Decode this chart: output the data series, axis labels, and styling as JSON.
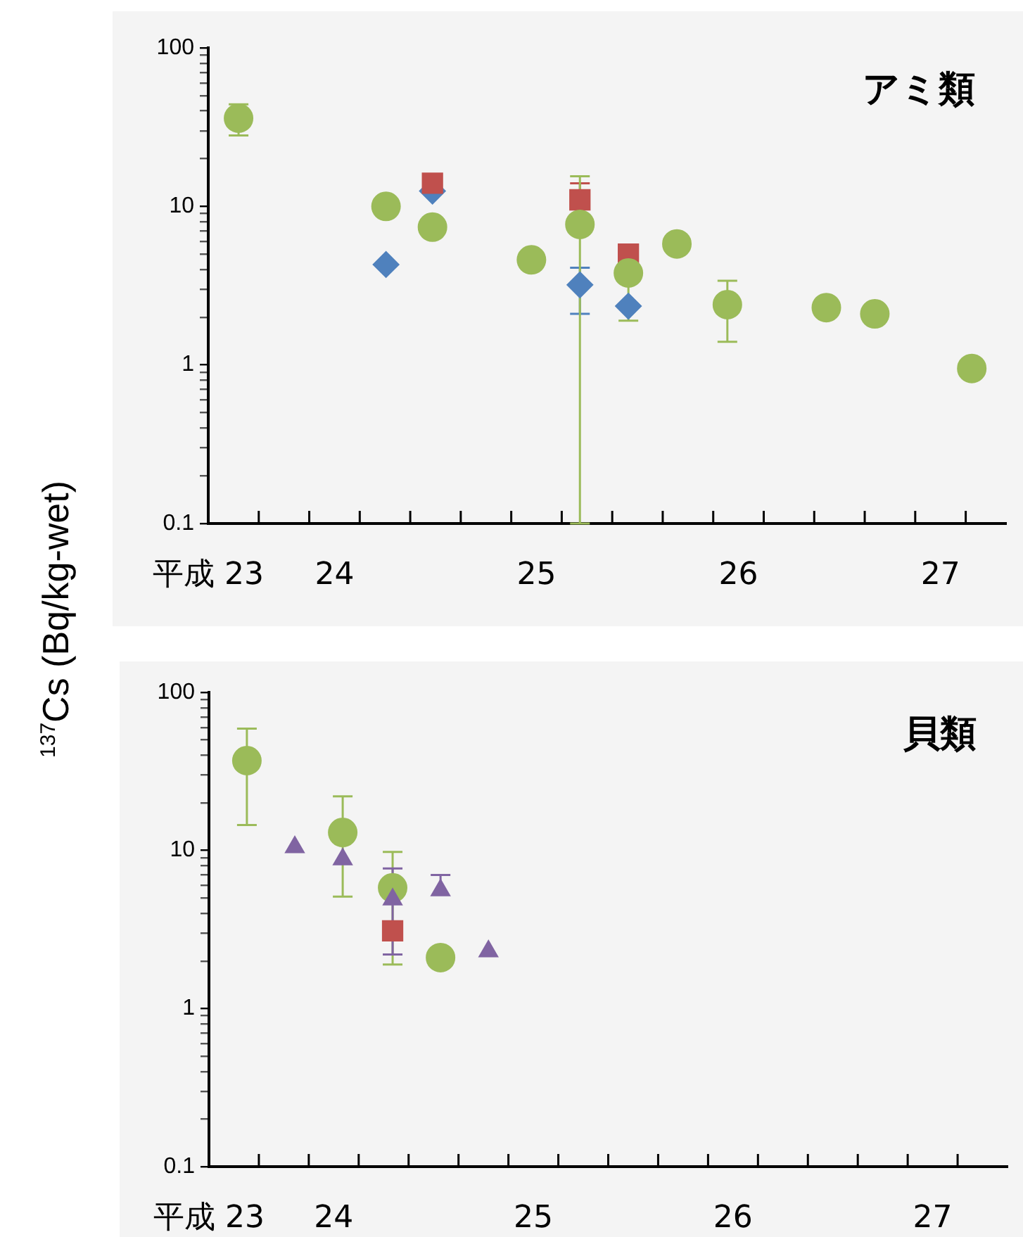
{
  "chart_data": [
    {
      "type": "scatter",
      "title": "アミ類",
      "ylabel": "$^{137}$Cs (Bq/kg-wet)",
      "log": "y",
      "grid": false,
      "legend": false,
      "xlim": [
        23.5,
        27.45
      ],
      "xticks": [
        {
          "value": 23.5,
          "label": "平成 23"
        },
        {
          "value": 23.75,
          "label": null
        },
        {
          "value": 24,
          "label": null
        },
        {
          "value": 24.125,
          "label": "24"
        },
        {
          "value": 24.25,
          "label": null
        },
        {
          "value": 24.5,
          "label": null
        },
        {
          "value": 24.75,
          "label": null
        },
        {
          "value": 25,
          "label": null
        },
        {
          "value": 25.125,
          "label": "25"
        },
        {
          "value": 25.25,
          "label": null
        },
        {
          "value": 25.5,
          "label": null
        },
        {
          "value": 25.75,
          "label": null
        },
        {
          "value": 26,
          "label": null
        },
        {
          "value": 26.125,
          "label": "26"
        },
        {
          "value": 26.25,
          "label": null
        },
        {
          "value": 26.5,
          "label": null
        },
        {
          "value": 26.75,
          "label": null
        },
        {
          "value": 27,
          "label": null
        },
        {
          "value": 27.125,
          "label": "27"
        },
        {
          "value": 27.25,
          "label": null
        }
      ],
      "ylim": [
        0.1,
        100
      ],
      "yticks": [
        0.1,
        {
          "value": 0.2,
          "label": null
        },
        {
          "value": 0.3,
          "label": null
        },
        {
          "value": 0.4,
          "label": null
        },
        {
          "value": 0.5,
          "label": null
        },
        {
          "value": 0.6,
          "label": null
        },
        {
          "value": 0.7,
          "label": null
        },
        {
          "value": 0.8,
          "label": null
        },
        {
          "value": 0.9,
          "label": null
        },
        1,
        {
          "value": 2,
          "label": null
        },
        {
          "value": 3,
          "label": null
        },
        {
          "value": 4,
          "label": null
        },
        {
          "value": 5,
          "label": null
        },
        {
          "value": 6,
          "label": null
        },
        {
          "value": 7,
          "label": null
        },
        {
          "value": 8,
          "label": null
        },
        {
          "value": 9,
          "label": null
        },
        10,
        {
          "value": 20,
          "label": null
        },
        {
          "value": 30,
          "label": null
        },
        {
          "value": 40,
          "label": null
        },
        {
          "value": 50,
          "label": null
        },
        {
          "value": 60,
          "label": null
        },
        {
          "value": 70,
          "label": null
        },
        {
          "value": 80,
          "label": null
        },
        {
          "value": 90,
          "label": null
        },
        100
      ],
      "series": [
        {
          "color": "#4f81bd",
          "marker": "diamond",
          "x": [
            24.38,
            24.61,
            25.34,
            25.58
          ],
          "values": [
            4.3,
            12.5,
            3.2,
            2.35
          ],
          "errors": [
            null,
            null,
            [
              2.1,
              4.1
            ],
            null
          ]
        },
        {
          "color": "#c0504d",
          "marker": "square",
          "x": [
            24.61,
            25.34,
            25.58
          ],
          "values": [
            14,
            11,
            5.0
          ],
          "errors": [
            null,
            [
              11,
              14
            ],
            null
          ]
        },
        {
          "color": "#9bbb59",
          "marker": "circle",
          "x": [
            23.65,
            24.38,
            24.61,
            25.1,
            25.34,
            25.58,
            25.82,
            26.07,
            26.56,
            26.8,
            27.28
          ],
          "values": [
            36,
            10,
            7.4,
            4.6,
            7.7,
            3.8,
            5.8,
            2.4,
            2.3,
            2.1,
            0.95
          ],
          "errors": [
            [
              28,
              44
            ],
            null,
            null,
            null,
            [
              0.1,
              15.5
            ],
            [
              1.9,
              3.8
            ],
            null,
            [
              1.4,
              3.4
            ],
            null,
            null,
            null
          ]
        }
      ]
    },
    {
      "type": "scatter",
      "title": "貝類",
      "log": "y",
      "grid": false,
      "legend": false,
      "xlim": [
        23.5,
        27.5
      ],
      "xticks": [
        {
          "value": 23.5,
          "label": "平成 23"
        },
        {
          "value": 23.75,
          "label": null
        },
        {
          "value": 24,
          "label": null
        },
        {
          "value": 24.125,
          "label": "24"
        },
        {
          "value": 24.25,
          "label": null
        },
        {
          "value": 24.5,
          "label": null
        },
        {
          "value": 24.75,
          "label": null
        },
        {
          "value": 25,
          "label": null
        },
        {
          "value": 25.125,
          "label": "25"
        },
        {
          "value": 25.25,
          "label": null
        },
        {
          "value": 25.5,
          "label": null
        },
        {
          "value": 25.75,
          "label": null
        },
        {
          "value": 26,
          "label": null
        },
        {
          "value": 26.125,
          "label": "26"
        },
        {
          "value": 26.25,
          "label": null
        },
        {
          "value": 26.5,
          "label": null
        },
        {
          "value": 26.75,
          "label": null
        },
        {
          "value": 27,
          "label": null
        },
        {
          "value": 27.125,
          "label": "27"
        },
        {
          "value": 27.25,
          "label": null
        }
      ],
      "ylim": [
        0.1,
        100
      ],
      "yticks": [
        0.1,
        {
          "value": 0.2,
          "label": null
        },
        {
          "value": 0.3,
          "label": null
        },
        {
          "value": 0.4,
          "label": null
        },
        {
          "value": 0.5,
          "label": null
        },
        {
          "value": 0.6,
          "label": null
        },
        {
          "value": 0.7,
          "label": null
        },
        {
          "value": 0.8,
          "label": null
        },
        {
          "value": 0.9,
          "label": null
        },
        1,
        {
          "value": 2,
          "label": null
        },
        {
          "value": 3,
          "label": null
        },
        {
          "value": 4,
          "label": null
        },
        {
          "value": 5,
          "label": null
        },
        {
          "value": 6,
          "label": null
        },
        {
          "value": 7,
          "label": null
        },
        {
          "value": 8,
          "label": null
        },
        {
          "value": 9,
          "label": null
        },
        10,
        {
          "value": 20,
          "label": null
        },
        {
          "value": 30,
          "label": null
        },
        {
          "value": 40,
          "label": null
        },
        {
          "value": 50,
          "label": null
        },
        {
          "value": 60,
          "label": null
        },
        {
          "value": 70,
          "label": null
        },
        {
          "value": 80,
          "label": null
        },
        {
          "value": 90,
          "label": null
        },
        100
      ],
      "series": [
        {
          "color": "#c0504d",
          "marker": "square",
          "x": [
            24.42
          ],
          "values": [
            3.1
          ],
          "errors": [
            null
          ]
        },
        {
          "color": "#9bbb59",
          "marker": "circle",
          "x": [
            23.69,
            24.17,
            24.42,
            24.66
          ],
          "values": [
            37,
            13,
            5.8,
            2.1
          ],
          "errors": [
            [
              14.5,
              59
            ],
            [
              5.1,
              22
            ],
            [
              1.9,
              9.8
            ],
            null
          ]
        },
        {
          "color": "#8064a2",
          "marker": "triangle",
          "x": [
            23.93,
            24.17,
            24.42,
            24.66,
            24.9
          ],
          "values": [
            10.5,
            8.8,
            4.9,
            5.6,
            2.3
          ],
          "errors": [
            null,
            null,
            [
              2.2,
              7.7
            ],
            [
              5.6,
              7.0
            ],
            null
          ]
        }
      ]
    }
  ]
}
